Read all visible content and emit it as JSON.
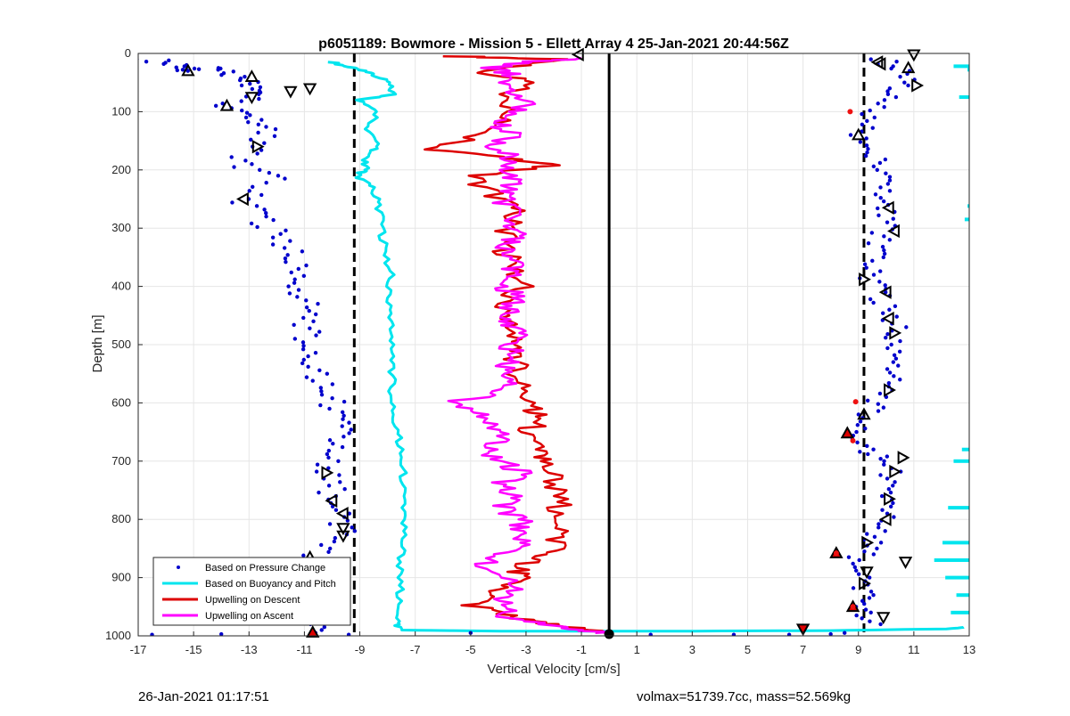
{
  "chart_data": {
    "type": "scatter",
    "title": "p6051189: Bowmore - Mission 5 - Ellett Array 4 25-Jan-2021 20:44:56Z",
    "xlabel": "Vertical Velocity [cm/s]",
    "ylabel": "Depth [m]",
    "xlim": [
      -17,
      13
    ],
    "ylim": [
      0,
      1000
    ],
    "y_reversed": true,
    "xticks": [
      "-17",
      "-15",
      "-13",
      "-11",
      "-9",
      "-7",
      "-5",
      "-3",
      "-1",
      "1",
      "3",
      "5",
      "7",
      "9",
      "11",
      "13"
    ],
    "yticks": [
      "0",
      "100",
      "200",
      "300",
      "400",
      "500",
      "600",
      "700",
      "800",
      "900",
      "1000"
    ],
    "grid": true,
    "legend_position": "bottom-left",
    "legend": [
      {
        "label": "Based on Pressure Change",
        "color": "#0000cc",
        "style": "dot"
      },
      {
        "label": "Based on Buoyancy and Pitch",
        "color": "#00e5ee",
        "style": "line"
      },
      {
        "label": "Upwelling on Descent",
        "color": "#dd0000",
        "style": "line"
      },
      {
        "label": "Upwelling on Ascent",
        "color": "#ff00ff",
        "style": "line"
      }
    ],
    "reference_lines": [
      {
        "x": -9.2,
        "style": "dashed",
        "color": "#000000"
      },
      {
        "x": 9.2,
        "style": "dashed",
        "color": "#000000"
      },
      {
        "x": 0,
        "style": "solid",
        "color": "#000000"
      }
    ],
    "series": [
      {
        "name": "Based on Pressure Change",
        "color": "#0000cc",
        "points_left": [
          [
            -16.5,
            10
          ],
          [
            -15.8,
            20
          ],
          [
            -15.2,
            30
          ],
          [
            -14.4,
            25
          ],
          [
            -13.5,
            40
          ],
          [
            -12.8,
            55
          ],
          [
            -12.3,
            70
          ],
          [
            -13.8,
            90
          ],
          [
            -13.1,
            110
          ],
          [
            -12.5,
            130
          ],
          [
            -12.8,
            160
          ],
          [
            -13.3,
            190
          ],
          [
            -12.2,
            215
          ],
          [
            -13.2,
            250
          ],
          [
            -12.6,
            280
          ],
          [
            -12.0,
            310
          ],
          [
            -11.6,
            340
          ],
          [
            -11.2,
            370
          ],
          [
            -11.4,
            400
          ],
          [
            -11.0,
            430
          ],
          [
            -10.8,
            460
          ],
          [
            -11.1,
            490
          ],
          [
            -10.9,
            520
          ],
          [
            -10.6,
            550
          ],
          [
            -10.3,
            580
          ],
          [
            -9.9,
            610
          ],
          [
            -9.7,
            640
          ],
          [
            -9.9,
            670
          ],
          [
            -10.1,
            700
          ],
          [
            -10.2,
            730
          ],
          [
            -9.9,
            760
          ],
          [
            -9.5,
            790
          ],
          [
            -9.6,
            820
          ],
          [
            -10.4,
            850
          ],
          [
            -10.8,
            880
          ],
          [
            -11.0,
            910
          ],
          [
            -11.2,
            940
          ],
          [
            -10.9,
            970
          ],
          [
            -10.6,
            995
          ]
        ],
        "points_right": [
          [
            9.9,
            10
          ],
          [
            10.4,
            30
          ],
          [
            10.8,
            55
          ],
          [
            9.7,
            80
          ],
          [
            9.3,
            110
          ],
          [
            9.1,
            140
          ],
          [
            9.6,
            170
          ],
          [
            10.0,
            200
          ],
          [
            9.8,
            230
          ],
          [
            9.7,
            260
          ],
          [
            10.1,
            290
          ],
          [
            9.8,
            320
          ],
          [
            9.5,
            350
          ],
          [
            9.4,
            380
          ],
          [
            9.8,
            410
          ],
          [
            10.0,
            440
          ],
          [
            10.3,
            470
          ],
          [
            10.2,
            500
          ],
          [
            10.4,
            530
          ],
          [
            10.1,
            560
          ],
          [
            9.9,
            590
          ],
          [
            9.2,
            620
          ],
          [
            8.9,
            650
          ],
          [
            9.2,
            680
          ],
          [
            10.0,
            700
          ],
          [
            10.2,
            730
          ],
          [
            9.8,
            760
          ],
          [
            10.1,
            790
          ],
          [
            9.7,
            820
          ],
          [
            9.4,
            845
          ],
          [
            9.0,
            870
          ],
          [
            9.3,
            900
          ],
          [
            9.2,
            930
          ],
          [
            9.0,
            955
          ],
          [
            9.8,
            980
          ]
        ],
        "bottom_points": [
          [
            -9.4,
            998
          ],
          [
            -5.0,
            995
          ],
          [
            1.5,
            998
          ],
          [
            4.5,
            998
          ],
          [
            6.5,
            998
          ],
          [
            8.0,
            997
          ],
          [
            8.5,
            995
          ],
          [
            -16.5,
            998
          ],
          [
            -14.0,
            997
          ]
        ]
      },
      {
        "name": "Based on Buoyancy and Pitch",
        "color": "#00e5ee",
        "points": [
          [
            -10.0,
            15
          ],
          [
            -9.3,
            25
          ],
          [
            -8.5,
            35
          ],
          [
            -8.0,
            50
          ],
          [
            -7.8,
            70
          ],
          [
            -9.0,
            80
          ],
          [
            -8.3,
            100
          ],
          [
            -8.7,
            130
          ],
          [
            -8.4,
            160
          ],
          [
            -8.9,
            180
          ],
          [
            -8.8,
            200
          ],
          [
            -9.1,
            210
          ],
          [
            -8.6,
            230
          ],
          [
            -8.3,
            260
          ],
          [
            -8.2,
            300
          ],
          [
            -8.1,
            340
          ],
          [
            -7.9,
            380
          ],
          [
            -8.0,
            420
          ],
          [
            -7.8,
            460
          ],
          [
            -7.9,
            500
          ],
          [
            -7.8,
            540
          ],
          [
            -7.9,
            580
          ],
          [
            -7.8,
            620
          ],
          [
            -7.6,
            660
          ],
          [
            -7.5,
            700
          ],
          [
            -7.4,
            740
          ],
          [
            -7.5,
            780
          ],
          [
            -7.4,
            820
          ],
          [
            -7.5,
            860
          ],
          [
            -7.6,
            900
          ],
          [
            -7.5,
            940
          ],
          [
            -7.6,
            975
          ],
          [
            -7.6,
            990
          ],
          [
            -4.0,
            992
          ],
          [
            2.0,
            992
          ],
          [
            8.0,
            991
          ],
          [
            12.2,
            988
          ],
          [
            12.8,
            985
          ]
        ],
        "right_edge_points": [
          [
            12.5,
            22
          ],
          [
            13.0,
            28
          ],
          [
            12.7,
            75
          ],
          [
            13.0,
            262
          ],
          [
            12.9,
            285
          ],
          [
            12.8,
            680
          ],
          [
            12.5,
            700
          ],
          [
            12.3,
            780
          ],
          [
            12.1,
            840
          ],
          [
            11.8,
            870
          ],
          [
            12.2,
            900
          ],
          [
            12.6,
            930
          ],
          [
            12.4,
            960
          ]
        ]
      },
      {
        "name": "Upwelling on Descent",
        "color": "#dd0000",
        "points": [
          [
            -5.5,
            5
          ],
          [
            -2.0,
            10
          ],
          [
            -4.5,
            30
          ],
          [
            -3.0,
            50
          ],
          [
            -4.0,
            80
          ],
          [
            -3.5,
            110
          ],
          [
            -4.5,
            140
          ],
          [
            -6.3,
            165
          ],
          [
            -3.8,
            180
          ],
          [
            -2.2,
            192
          ],
          [
            -5.0,
            210
          ],
          [
            -4.2,
            240
          ],
          [
            -3.5,
            270
          ],
          [
            -3.6,
            300
          ],
          [
            -3.8,
            330
          ],
          [
            -3.5,
            360
          ],
          [
            -3.2,
            400
          ],
          [
            -4.0,
            430
          ],
          [
            -3.4,
            460
          ],
          [
            -3.6,
            490
          ],
          [
            -3.3,
            520
          ],
          [
            -3.5,
            550
          ],
          [
            -3.0,
            580
          ],
          [
            -2.8,
            610
          ],
          [
            -2.5,
            630
          ],
          [
            -3.0,
            650
          ],
          [
            -2.7,
            680
          ],
          [
            -2.4,
            700
          ],
          [
            -2.0,
            730
          ],
          [
            -1.9,
            760
          ],
          [
            -1.7,
            790
          ],
          [
            -1.6,
            820
          ],
          [
            -2.0,
            850
          ],
          [
            -2.8,
            870
          ],
          [
            -3.2,
            890
          ],
          [
            -3.5,
            910
          ],
          [
            -4.2,
            930
          ],
          [
            -5.0,
            945
          ],
          [
            -4.2,
            960
          ],
          [
            -3.0,
            975
          ],
          [
            -1.5,
            985
          ],
          [
            0.0,
            995
          ]
        ]
      },
      {
        "name": "Upwelling on Ascent",
        "color": "#ff00ff",
        "points": [
          [
            0.0,
            995
          ],
          [
            -2.0,
            985
          ],
          [
            -3.5,
            970
          ],
          [
            -4.0,
            950
          ],
          [
            -3.8,
            930
          ],
          [
            -3.2,
            910
          ],
          [
            -4.5,
            880
          ],
          [
            -3.8,
            860
          ],
          [
            -3.2,
            840
          ],
          [
            -3.5,
            820
          ],
          [
            -3.2,
            800
          ],
          [
            -3.8,
            780
          ],
          [
            -3.6,
            760
          ],
          [
            -3.9,
            740
          ],
          [
            -3.0,
            720
          ],
          [
            -4.0,
            700
          ],
          [
            -4.5,
            680
          ],
          [
            -3.8,
            660
          ],
          [
            -4.0,
            640
          ],
          [
            -4.8,
            620
          ],
          [
            -5.6,
            600
          ],
          [
            -4.0,
            580
          ],
          [
            -3.5,
            560
          ],
          [
            -3.8,
            540
          ],
          [
            -3.5,
            520
          ],
          [
            -3.6,
            500
          ],
          [
            -3.3,
            480
          ],
          [
            -3.9,
            460
          ],
          [
            -3.6,
            440
          ],
          [
            -3.4,
            420
          ],
          [
            -3.7,
            400
          ],
          [
            -3.3,
            380
          ],
          [
            -3.5,
            360
          ],
          [
            -3.8,
            340
          ],
          [
            -3.4,
            320
          ],
          [
            -3.6,
            300
          ],
          [
            -3.3,
            280
          ],
          [
            -3.7,
            260
          ],
          [
            -3.9,
            240
          ],
          [
            -3.6,
            220
          ],
          [
            -3.9,
            200
          ],
          [
            -3.5,
            180
          ],
          [
            -4.3,
            160
          ],
          [
            -3.6,
            140
          ],
          [
            -4.0,
            120
          ],
          [
            -3.5,
            100
          ],
          [
            -3.0,
            80
          ],
          [
            -4.0,
            60
          ],
          [
            -3.4,
            40
          ],
          [
            -4.2,
            25
          ],
          [
            -3.0,
            15
          ],
          [
            -1.0,
            8
          ]
        ]
      }
    ],
    "markers": {
      "left": [
        [
          "up",
          -15.2,
          30
        ],
        [
          "up",
          -12.9,
          40
        ],
        [
          "down",
          -11.5,
          65
        ],
        [
          "down",
          -12.9,
          75
        ],
        [
          "down",
          -10.8,
          60
        ],
        [
          "up",
          -13.8,
          90
        ],
        [
          "right",
          -12.7,
          160
        ],
        [
          "left",
          -13.2,
          250
        ],
        [
          "right",
          -10.2,
          720
        ],
        [
          "left",
          -10.0,
          768
        ],
        [
          "left",
          -9.6,
          790
        ],
        [
          "down",
          -9.6,
          815
        ],
        [
          "down",
          -9.6,
          828
        ],
        [
          "up",
          -10.8,
          865
        ],
        [
          "right",
          -11.3,
          935
        ],
        [
          "up",
          -10.7,
          994
        ]
      ],
      "right": [
        [
          "down",
          11.0,
          2
        ],
        [
          "left",
          9.7,
          15
        ],
        [
          "left",
          9.8,
          18
        ],
        [
          "up",
          10.8,
          25
        ],
        [
          "right",
          11.1,
          55
        ],
        [
          "up",
          9.0,
          140
        ],
        [
          "left",
          10.1,
          265
        ],
        [
          "left",
          10.3,
          305
        ],
        [
          "right",
          9.2,
          388
        ],
        [
          "left",
          10.0,
          410
        ],
        [
          "left",
          10.1,
          455
        ],
        [
          "right",
          10.3,
          480
        ],
        [
          "right",
          10.1,
          578
        ],
        [
          "up",
          9.2,
          620
        ],
        [
          "up",
          8.6,
          652
        ],
        [
          "right",
          10.6,
          694
        ],
        [
          "right",
          10.3,
          718
        ],
        [
          "right",
          10.1,
          765
        ],
        [
          "left",
          10.0,
          800
        ],
        [
          "right",
          9.3,
          840
        ],
        [
          "down",
          10.7,
          873
        ],
        [
          "down",
          9.3,
          890
        ],
        [
          "right",
          9.2,
          910
        ],
        [
          "up",
          8.8,
          950
        ],
        [
          "down",
          9.9,
          968
        ],
        [
          "up",
          8.2,
          858
        ],
        [
          "down",
          7.0,
          988
        ]
      ],
      "center": [
        [
          "left",
          -1.1,
          2
        ],
        [
          "circle",
          0.0,
          997
        ]
      ]
    },
    "red_dots": [
      [
        8.7,
        100
      ],
      [
        8.9,
        598
      ],
      [
        8.8,
        665
      ],
      [
        8.2,
        858
      ],
      [
        8.8,
        950
      ]
    ]
  },
  "footer": {
    "timestamp": "26-Jan-2021 01:17:51",
    "summary": "volmax=51739.7cc, mass=52.569kg"
  }
}
